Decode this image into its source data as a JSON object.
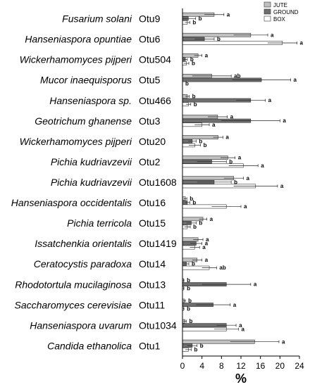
{
  "chart_data": {
    "type": "bar",
    "orientation": "horizontal",
    "xlabel": "%",
    "xlim": [
      0,
      24
    ],
    "xticks": [
      0,
      4,
      8,
      12,
      16,
      20,
      24
    ],
    "legend_position": "top-right",
    "colors": {
      "JUTE": "#c0c0c0",
      "GROUND": "#6e6e6e",
      "BOX": "#ffffff"
    },
    "categories": [
      {
        "species": "Fusarium solani",
        "otu": "Otu9"
      },
      {
        "species": "Hanseniaspora opuntiae",
        "otu": "Otu6"
      },
      {
        "species": "Wickerhamomyces pijperi",
        "otu": "Otu504"
      },
      {
        "species": "Mucor inaequisporus",
        "otu": "Otu5"
      },
      {
        "species": "Hanseniaspora sp.",
        "otu": "Otu466"
      },
      {
        "species": "Geotrichum ghanense",
        "otu": "Otu3"
      },
      {
        "species": "Wickerhamomyces pijperi",
        "otu": "Otu20"
      },
      {
        "species": "Pichia kudriavzevii",
        "otu": "Otu2"
      },
      {
        "species": "Pichia kudriavzevii",
        "otu": "Otu1608"
      },
      {
        "species": "Hanseniaspora occidentalis",
        "otu": "Otu16"
      },
      {
        "species": "Pichia terricola",
        "otu": "Otu15"
      },
      {
        "species": "Issatchenkia orientalis",
        "otu": "Otu1419"
      },
      {
        "species": "Ceratocystis paradoxa",
        "otu": "Otu14"
      },
      {
        "species": "Rhodotortula mucilaginosa",
        "otu": "Otu13"
      },
      {
        "species": "Saccharomyces cerevisiae",
        "otu": "Otu11"
      },
      {
        "species": "Hanseniaspora uvarum",
        "otu": "Otu1034"
      },
      {
        "species": "Candida ethanolica",
        "otu": "Otu1"
      }
    ],
    "series": [
      {
        "name": "JUTE",
        "values": [
          6.5,
          14.0,
          3.2,
          6.0,
          1.0,
          7.2,
          7.3,
          9.3,
          10.5,
          0.6,
          4.2,
          3.2,
          3.0,
          0.2,
          0.4,
          0.5,
          14.8
        ],
        "errors": [
          2.0,
          3.5,
          0.8,
          4.0,
          0.4,
          2.0,
          1.0,
          1.5,
          2.0,
          0.3,
          0.8,
          1.0,
          1.0,
          0.1,
          0.2,
          0.3,
          5.0
        ],
        "labels": [
          "a",
          "a",
          "a",
          "ab",
          "b",
          "a",
          "a",
          "a",
          "a",
          "b",
          "a",
          "a",
          "a",
          "b",
          "b",
          "b",
          "a"
        ]
      },
      {
        "name": "GROUND",
        "values": [
          1.2,
          4.5,
          0.6,
          16.2,
          14.0,
          14.0,
          2.0,
          6.0,
          6.5,
          1.0,
          1.8,
          2.8,
          0.8,
          9.0,
          6.3,
          9.0,
          2.0
        ],
        "errors": [
          1.5,
          2.0,
          0.4,
          6.0,
          3.0,
          6.0,
          0.8,
          3.0,
          3.5,
          0.5,
          1.0,
          1.2,
          0.5,
          5.0,
          3.5,
          2.0,
          1.0
        ],
        "labels": [
          "b",
          "b",
          "b",
          "a",
          "a",
          "a",
          "b",
          "b",
          "b",
          "b",
          "b",
          "a",
          "b",
          "a",
          "a",
          "a",
          "b"
        ]
      },
      {
        "name": "BOX",
        "values": [
          1.0,
          20.5,
          0.8,
          0.0,
          1.2,
          4.0,
          2.5,
          12.5,
          15.0,
          9.0,
          1.0,
          2.5,
          5.5,
          0.2,
          0.2,
          9.0,
          1.2
        ],
        "errors": [
          0.5,
          3.0,
          0.5,
          0.0,
          0.5,
          1.5,
          1.2,
          3.0,
          4.5,
          3.0,
          0.6,
          1.0,
          1.5,
          0.1,
          0.1,
          2.5,
          0.6
        ],
        "labels": [
          "b",
          "a",
          "b",
          "b",
          "b",
          "a",
          "b",
          "a",
          "a",
          "a",
          "b",
          "a",
          "ab",
          "b",
          "b",
          "a",
          "b"
        ]
      }
    ]
  }
}
